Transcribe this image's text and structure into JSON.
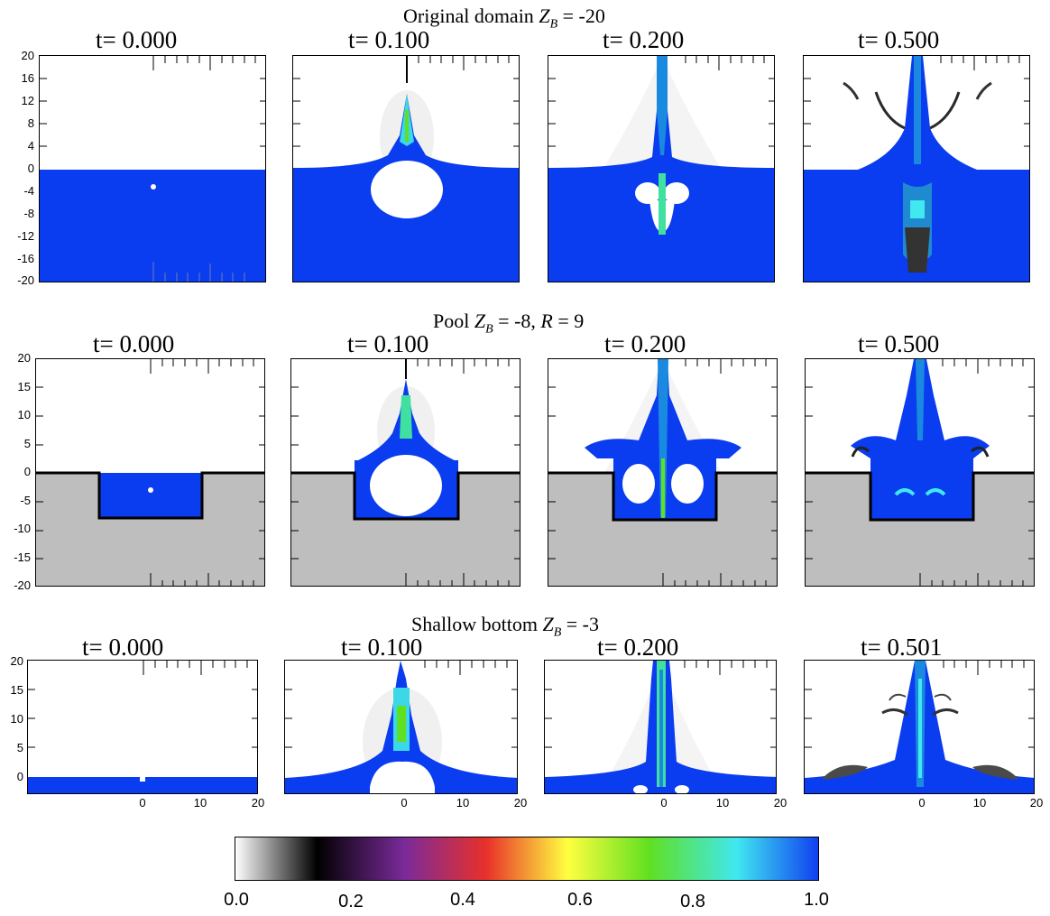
{
  "rows": [
    {
      "title_prefix": "Original domain ",
      "title_var": "Z",
      "title_sub": "B",
      "title_rest": " = -20",
      "panel_titles": [
        "t= 0.000",
        "t= 0.100",
        "t= 0.200",
        "t= 0.500"
      ],
      "y_ticks": [
        "20",
        "16",
        "12",
        "8",
        "4",
        "0",
        "-4",
        "-8",
        "-12",
        "-16",
        "-20"
      ]
    },
    {
      "title_prefix": "Pool ",
      "title_var": "Z",
      "title_sub": "B",
      "title_rest": " = -8, ",
      "title_var2": "R",
      "title_rest2": " = 9",
      "panel_titles": [
        "t= 0.000",
        "t= 0.100",
        "t= 0.200",
        "t= 0.500"
      ],
      "y_ticks": [
        "20",
        "15",
        "10",
        "5",
        "0",
        "-5",
        "-10",
        "-15",
        "-20"
      ]
    },
    {
      "title_prefix": "Shallow bottom ",
      "title_var": "Z",
      "title_sub": "B",
      "title_rest": " = -3",
      "panel_titles": [
        "t= 0.000",
        "t= 0.100",
        "t= 0.200",
        "t= 0.501"
      ],
      "y_ticks": [
        "20",
        "15",
        "10",
        "5",
        "0"
      ],
      "x_ticks": [
        "0",
        "10",
        "20"
      ]
    }
  ],
  "colorbar": {
    "labels": [
      "0.0",
      "0.2",
      "0.4",
      "0.6",
      "0.8",
      "1.0"
    ],
    "colors": [
      "#ffffff",
      "#000000",
      "#7a2a9a",
      "#e8302a",
      "#ffff40",
      "#60e020",
      "#40e8f0",
      "#1040f0"
    ]
  },
  "colors": {
    "water": "#0a3cf0",
    "solid": "#bebebe"
  }
}
